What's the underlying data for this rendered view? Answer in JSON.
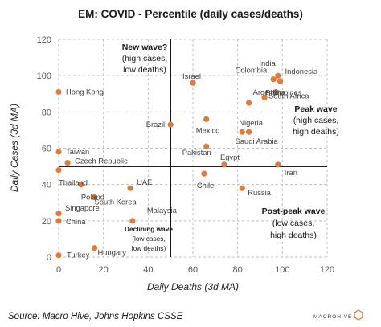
{
  "chart_data": {
    "type": "scatter",
    "title": "EM: COVID - Percentile (daily cases/deaths)",
    "xlabel": "Daily Deaths (3d MA)",
    "ylabel": "Daily Cases (3d MA)",
    "xlim": [
      0,
      120
    ],
    "ylim": [
      0,
      120
    ],
    "xticks": [
      "0",
      "20",
      "40",
      "60",
      "80",
      "100",
      "120"
    ],
    "yticks": [
      "0",
      "20",
      "40",
      "60",
      "80",
      "100",
      "120"
    ],
    "grid": true,
    "marker_color": "#e07b39",
    "reference_lines": {
      "x": 50,
      "y": 50
    },
    "points": [
      {
        "label": "Hong Kong",
        "x": 0,
        "y": 91
      },
      {
        "label": "Taiwan",
        "x": 0,
        "y": 58
      },
      {
        "label": "Czech Republic",
        "x": 4,
        "y": 52
      },
      {
        "label": "Thailand",
        "x": 0,
        "y": 48
      },
      {
        "label": "Poland",
        "x": 10,
        "y": 40
      },
      {
        "label": "South Korea",
        "x": 16,
        "y": 33
      },
      {
        "label": "UAE",
        "x": 32,
        "y": 38
      },
      {
        "label": "Singapore",
        "x": 0,
        "y": 24
      },
      {
        "label": "China",
        "x": 0,
        "y": 20
      },
      {
        "label": "Malaysia",
        "x": 33,
        "y": 20
      },
      {
        "label": "Turkey",
        "x": 0,
        "y": 1
      },
      {
        "label": "Hungary",
        "x": 16,
        "y": 5
      },
      {
        "label": "Brazil",
        "x": 50,
        "y": 73
      },
      {
        "label": "Israel",
        "x": 60,
        "y": 96
      },
      {
        "label": "Mexico",
        "x": 66,
        "y": 76
      },
      {
        "label": "Pakistan",
        "x": 66,
        "y": 61
      },
      {
        "label": "Egypt",
        "x": 74,
        "y": 51
      },
      {
        "label": "Chile",
        "x": 65,
        "y": 46
      },
      {
        "label": "Russia",
        "x": 82,
        "y": 38
      },
      {
        "label": "Nigeria",
        "x": 82,
        "y": 69
      },
      {
        "label": "Saudi Arabia",
        "x": 85,
        "y": 69
      },
      {
        "label": "Argentina",
        "x": 85,
        "y": 85
      },
      {
        "label": "Colombia",
        "x": 96,
        "y": 98
      },
      {
        "label": "India",
        "x": 98,
        "y": 100
      },
      {
        "label": "Indonesia",
        "x": 99,
        "y": 97
      },
      {
        "label": "South Africa",
        "x": 97,
        "y": 91
      },
      {
        "label": "Philippines",
        "x": 92,
        "y": 88
      },
      {
        "label": "Iran",
        "x": 98,
        "y": 51
      }
    ],
    "annotations": {
      "new_wave_title": "New wave?",
      "new_wave_l1": "(high cases,",
      "new_wave_l2": "low deaths)",
      "peak_title": "Peak wave",
      "peak_l1": "(high cases,",
      "peak_l2": "high deaths)",
      "post_title": "Post-peak wave",
      "post_l1": "(low cases,",
      "post_l2": "high deaths)",
      "declining_title": "Declining wave",
      "declining_l1": "(low cases,",
      "declining_l2": "low deaths)"
    }
  },
  "footer": {
    "source": "Source: Macro Hive, Johns Hopkins CSSE",
    "logo": "MACROHIVE"
  }
}
